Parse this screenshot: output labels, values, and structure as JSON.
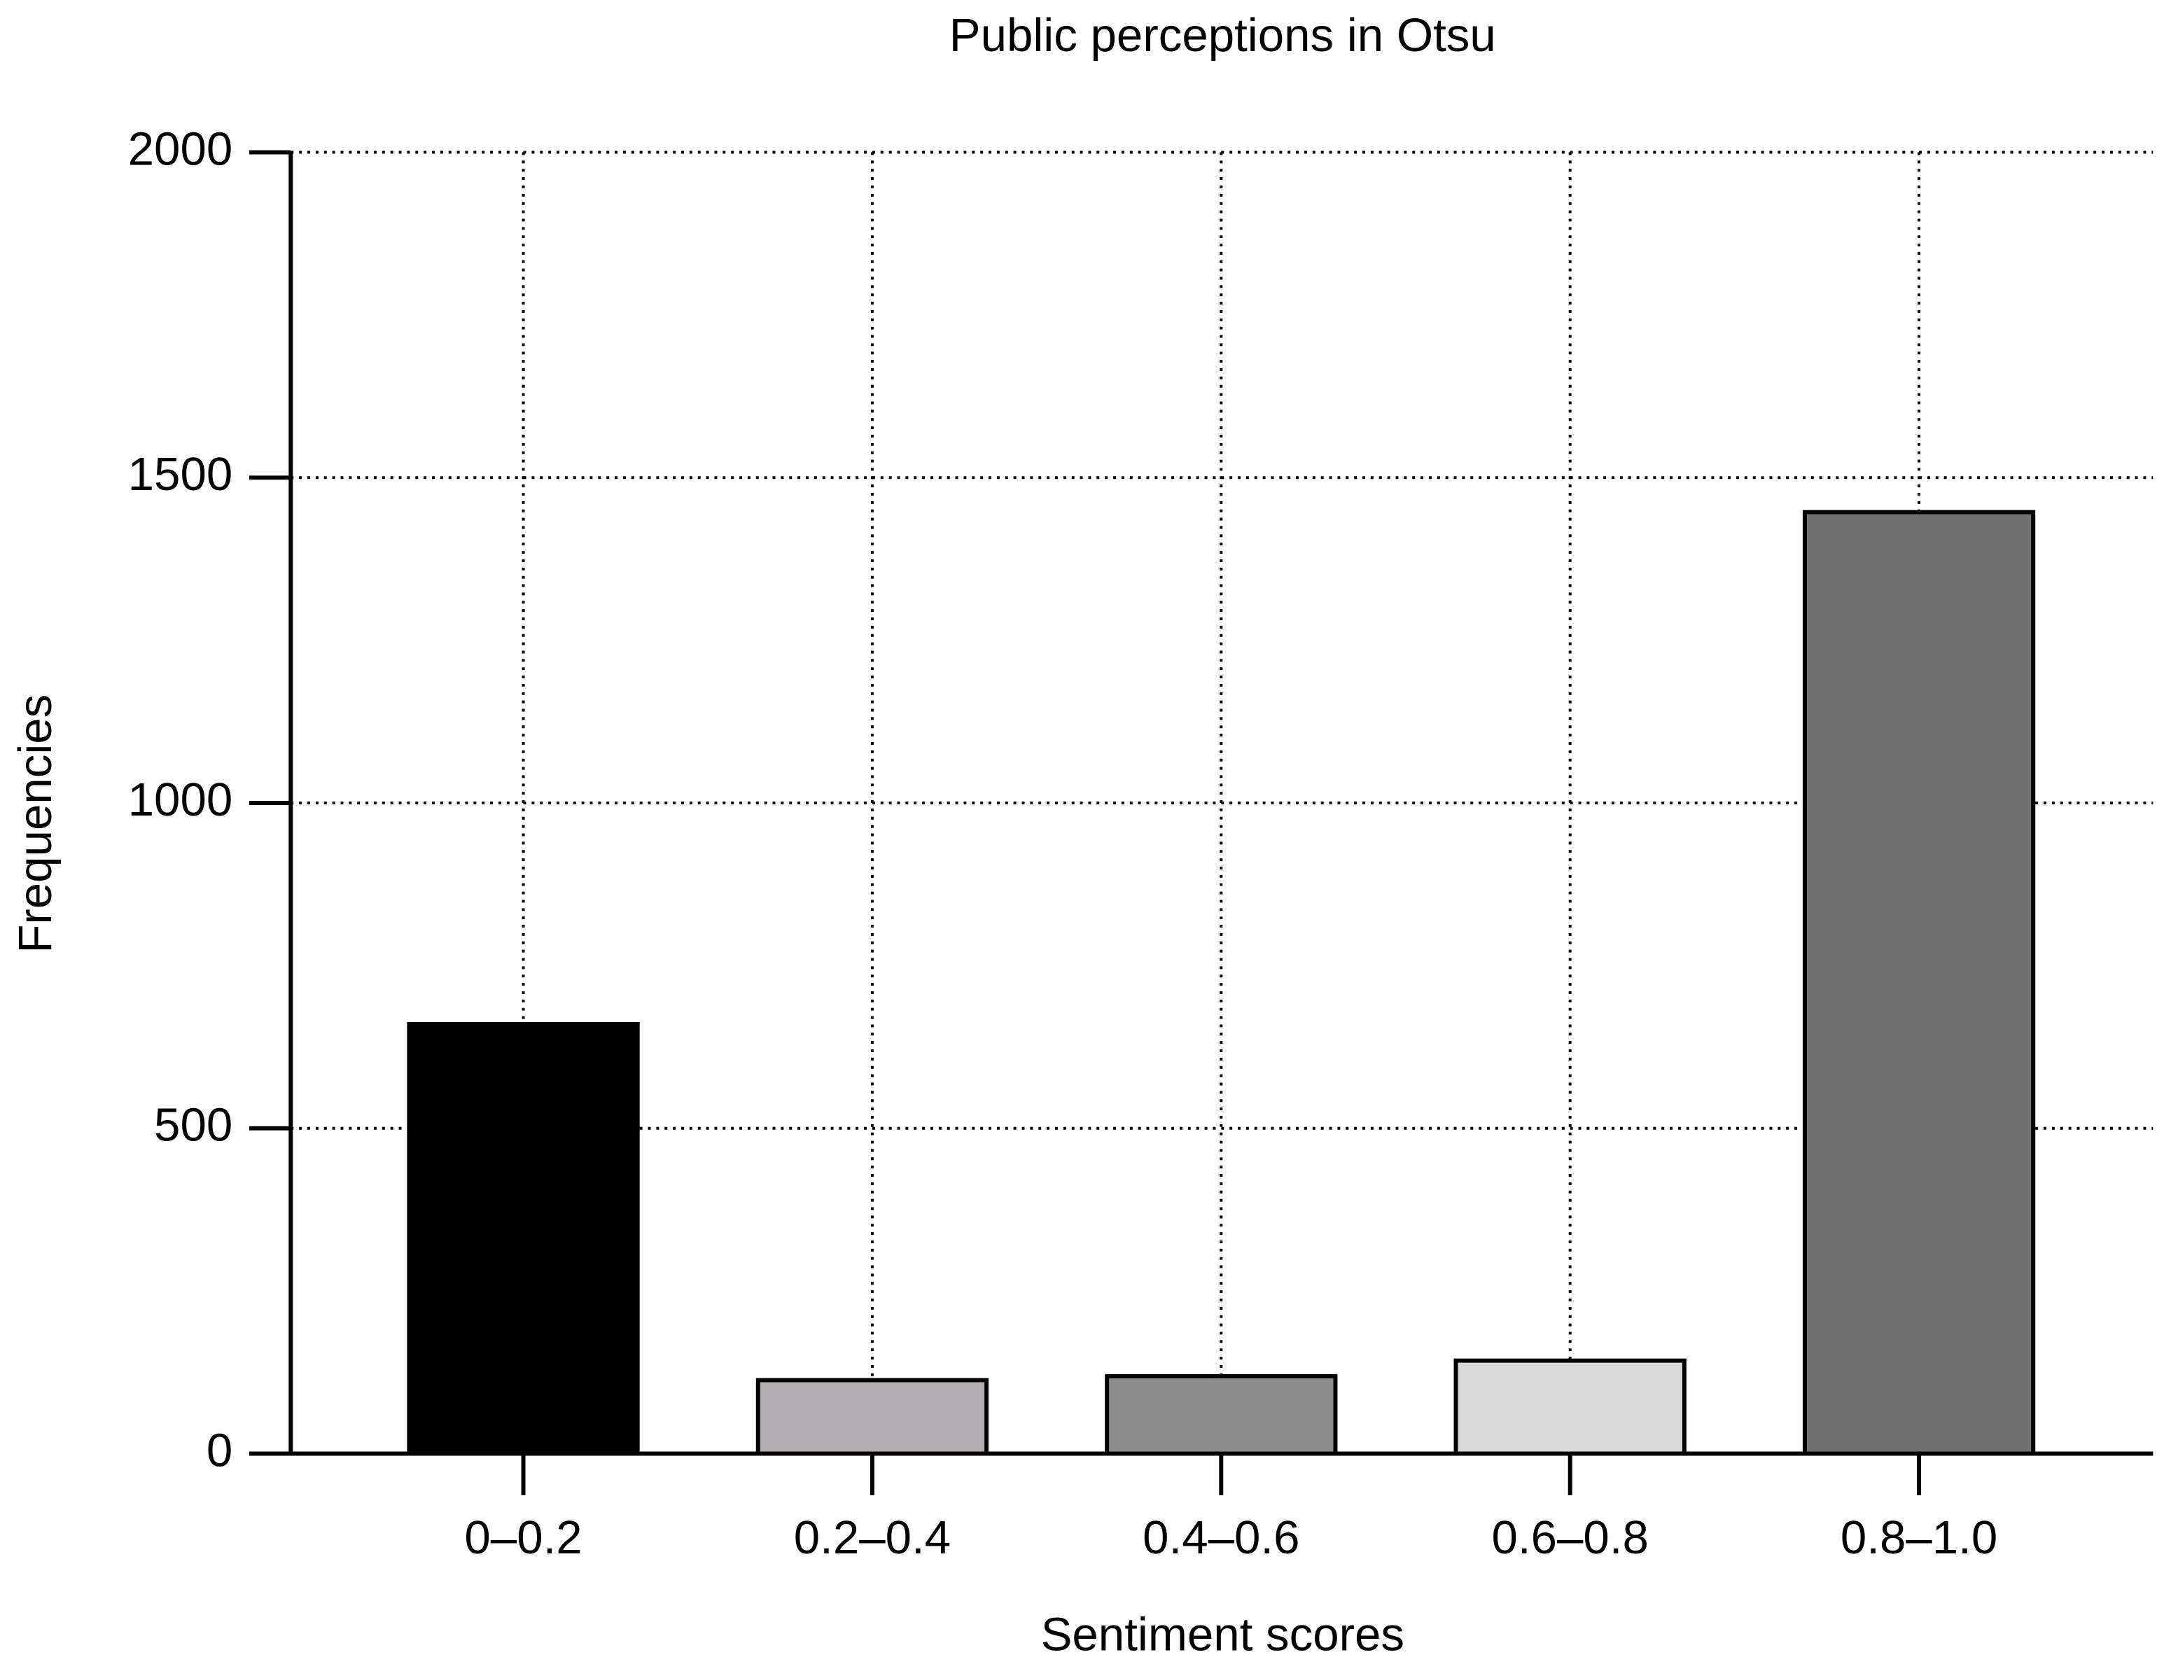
{
  "chart_data": {
    "type": "bar",
    "title": "Public perceptions in Otsu",
    "x_label": "Sentiment scores",
    "y_label": "Frequencies",
    "categories": [
      "0–0.2",
      "0.2–0.4",
      "0.4–0.6",
      "0.6–0.8",
      "0.8–1.0"
    ],
    "values": [
      660,
      113,
      119,
      143,
      1447
    ],
    "colors": [
      "#000000",
      "#b0acb0",
      "#8c8c8c",
      "#d9d9d9",
      "#707070"
    ],
    "ylim": [
      0,
      2000
    ],
    "yticks": [
      0,
      500,
      1000,
      1500,
      2000
    ],
    "grid": true
  }
}
